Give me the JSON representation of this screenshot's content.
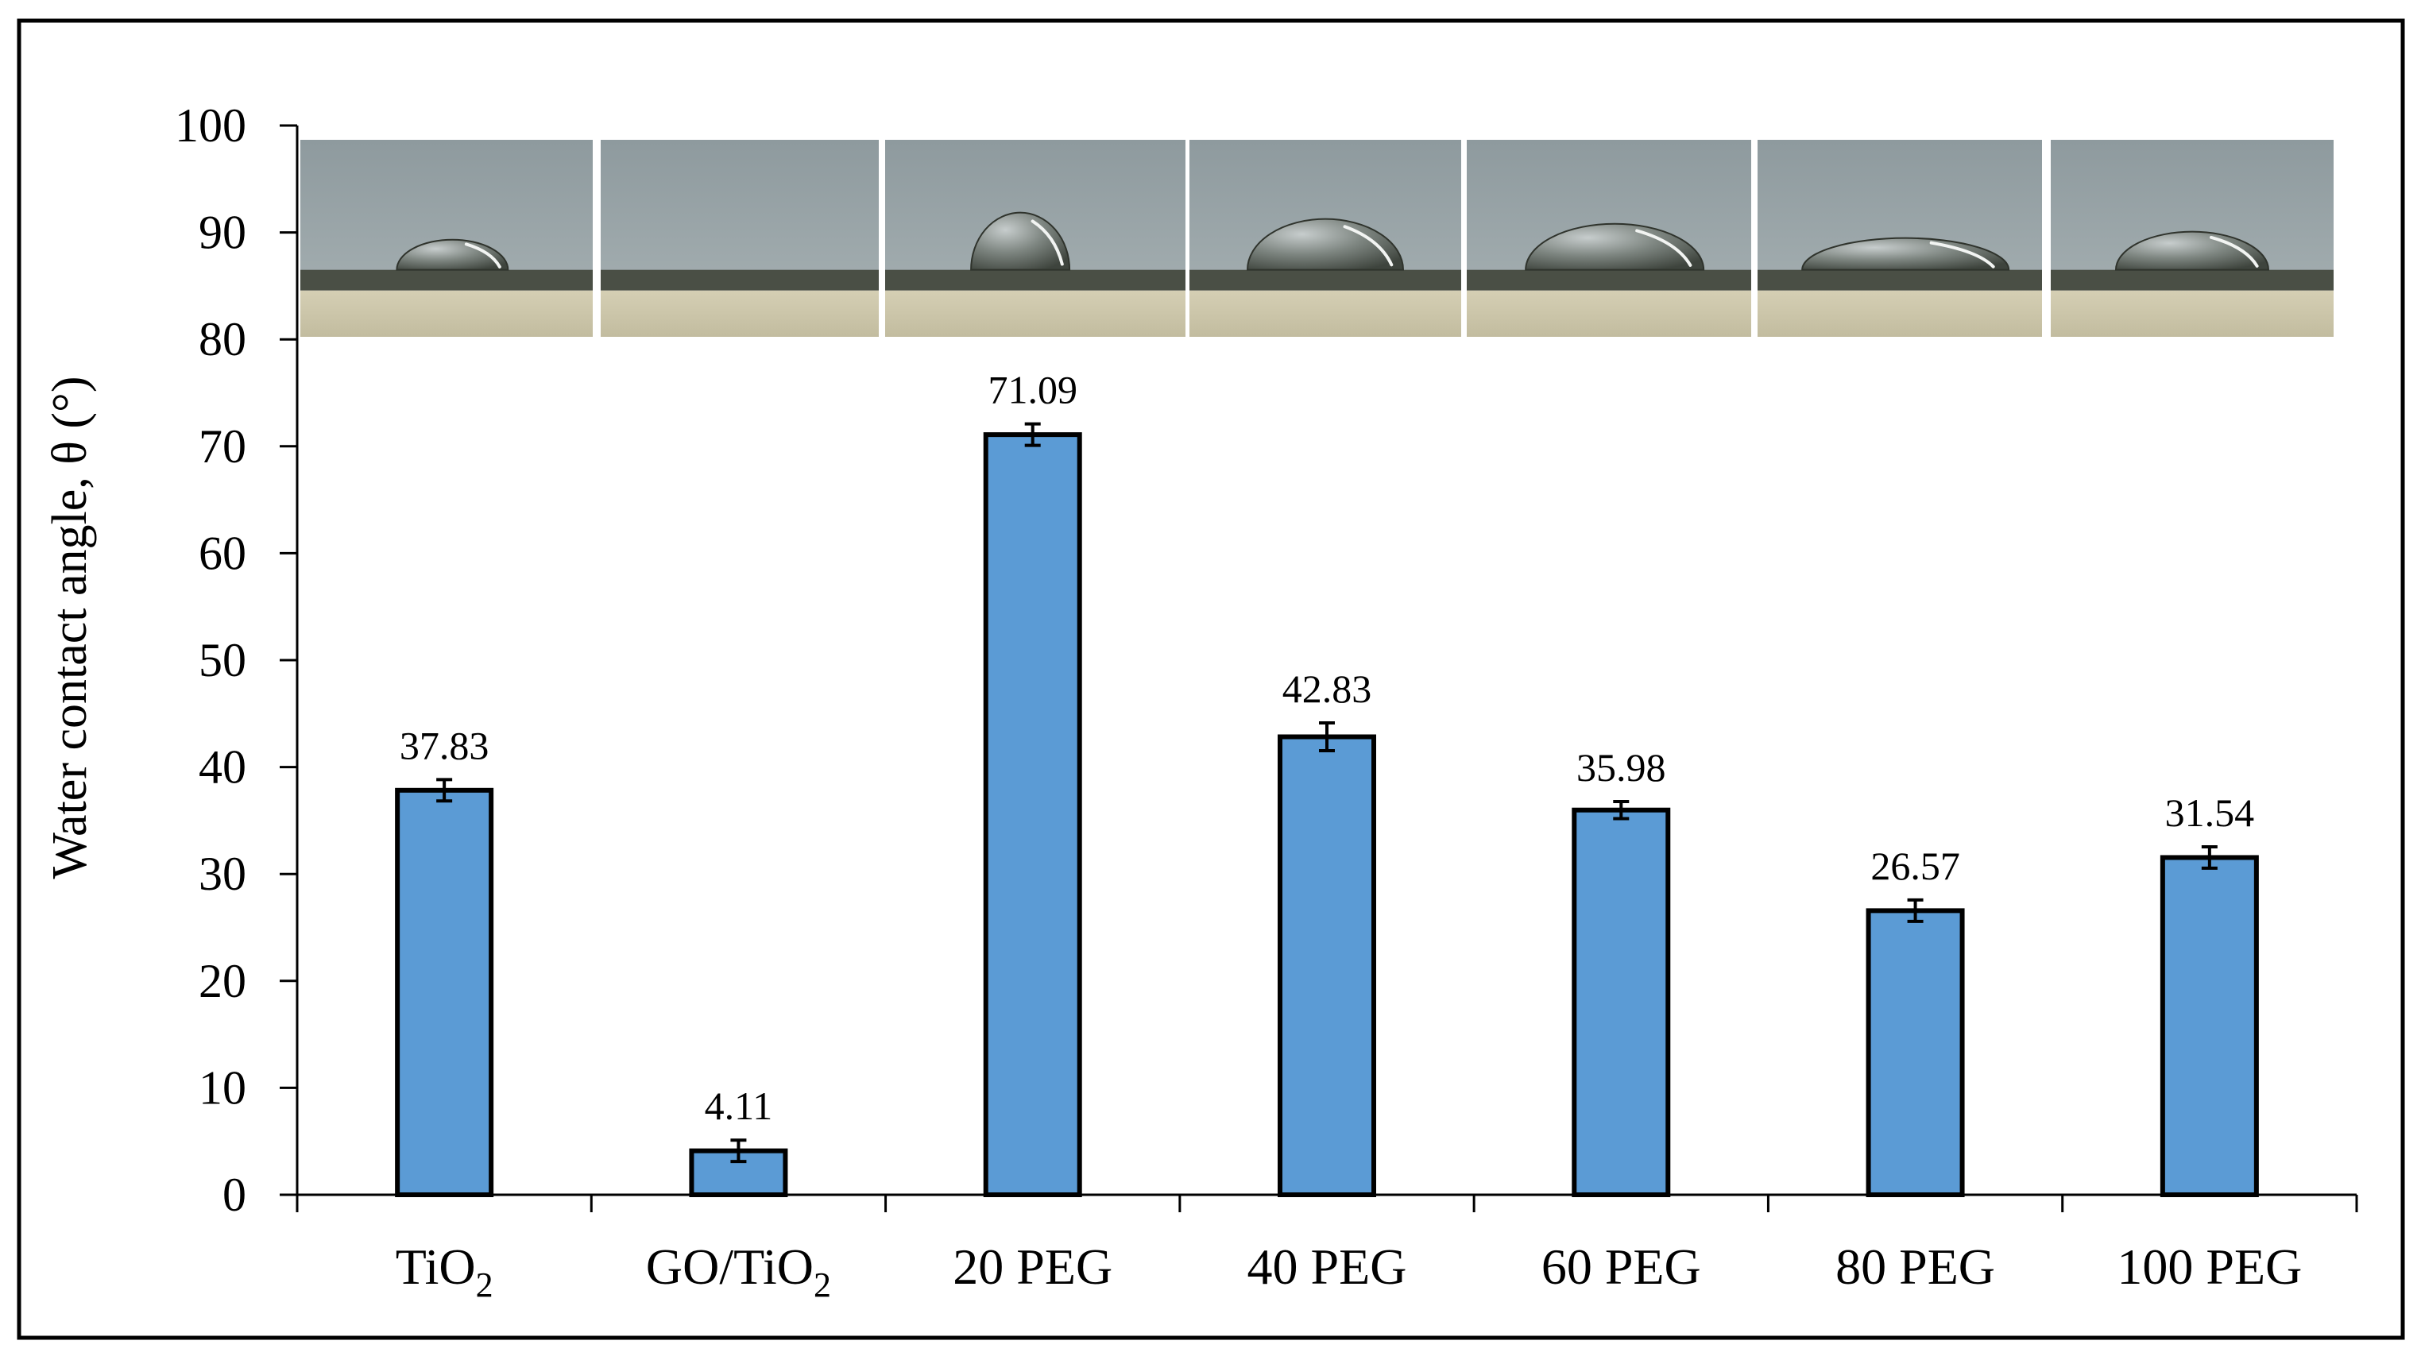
{
  "chart_data": {
    "type": "bar",
    "title": "",
    "xlabel": "",
    "ylabel": "Water contact angle, θ (°)",
    "ylim": [
      0,
      100
    ],
    "yticks": [
      0,
      10,
      20,
      30,
      40,
      50,
      60,
      70,
      80,
      90,
      100
    ],
    "categories": [
      {
        "main": "TiO",
        "sub": "2"
      },
      {
        "main": "GO/TiO",
        "sub": "2"
      },
      {
        "main": "20 PEG",
        "sub": ""
      },
      {
        "main": "40 PEG",
        "sub": ""
      },
      {
        "main": "60 PEG",
        "sub": ""
      },
      {
        "main": "80 PEG",
        "sub": ""
      },
      {
        "main": "100 PEG",
        "sub": ""
      }
    ],
    "values": [
      37.83,
      4.11,
      71.09,
      42.83,
      35.98,
      26.57,
      31.54
    ],
    "value_labels": [
      "37.83",
      "4.11",
      "71.09",
      "42.83",
      "35.98",
      "26.57",
      "31.54"
    ],
    "errors": [
      1.0,
      1.0,
      1.0,
      1.3,
      0.8,
      1.0,
      1.0
    ],
    "colors": {
      "bar": "#5b9bd5",
      "bar_edge": "#000000",
      "axis": "#000000"
    },
    "droplet_photos": [
      {
        "category": "TiO2",
        "droplet": "small-flat"
      },
      {
        "category": "GO/TiO2",
        "droplet": "spread-none"
      },
      {
        "category": "20 PEG",
        "droplet": "tall-bead"
      },
      {
        "category": "40 PEG",
        "droplet": "medium"
      },
      {
        "category": "60 PEG",
        "droplet": "medium-wide"
      },
      {
        "category": "80 PEG",
        "droplet": "low-wide"
      },
      {
        "category": "100 PEG",
        "droplet": "low-medium"
      }
    ]
  }
}
